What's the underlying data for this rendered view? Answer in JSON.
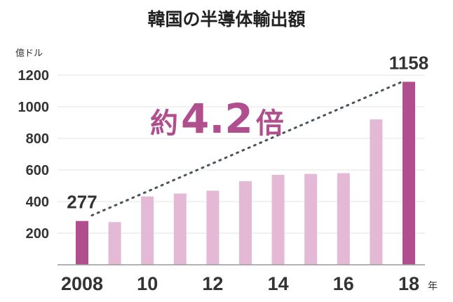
{
  "chart_data": {
    "type": "bar",
    "title": "韓国の半導体輸出額",
    "ylabel": "億ドル",
    "x": [
      2008,
      2009,
      2010,
      2011,
      2012,
      2013,
      2014,
      2015,
      2016,
      2017,
      2018
    ],
    "values": [
      277,
      270,
      432,
      451,
      469,
      529,
      569,
      575,
      580,
      920,
      1158
    ],
    "highlight_colors": {
      "end": "#b04e8e",
      "middle": "#e3b9d5"
    },
    "ylim": [
      0,
      1200
    ],
    "yticks": [
      "200",
      "400",
      "600",
      "800",
      "1000",
      "1200"
    ],
    "ytick_values": [
      200,
      400,
      600,
      800,
      1000,
      1200
    ],
    "xticks": [
      {
        "x": 2008,
        "label": "2008"
      },
      {
        "x": 2010,
        "label": "10"
      },
      {
        "x": 2012,
        "label": "12"
      },
      {
        "x": 2014,
        "label": "14"
      },
      {
        "x": 2016,
        "label": "16"
      },
      {
        "x": 2018,
        "label": "18"
      }
    ],
    "x_unit": "年",
    "data_labels": [
      {
        "x": 2008,
        "text": "277"
      },
      {
        "x": 2018,
        "text": "1158"
      }
    ],
    "annotation": {
      "prefix": "約",
      "number": "4.2",
      "suffix": "倍"
    },
    "trend_line": {
      "from": {
        "x": 2008,
        "y": 277
      },
      "to": {
        "x": 2018,
        "y": 1158
      }
    },
    "grid": true
  }
}
